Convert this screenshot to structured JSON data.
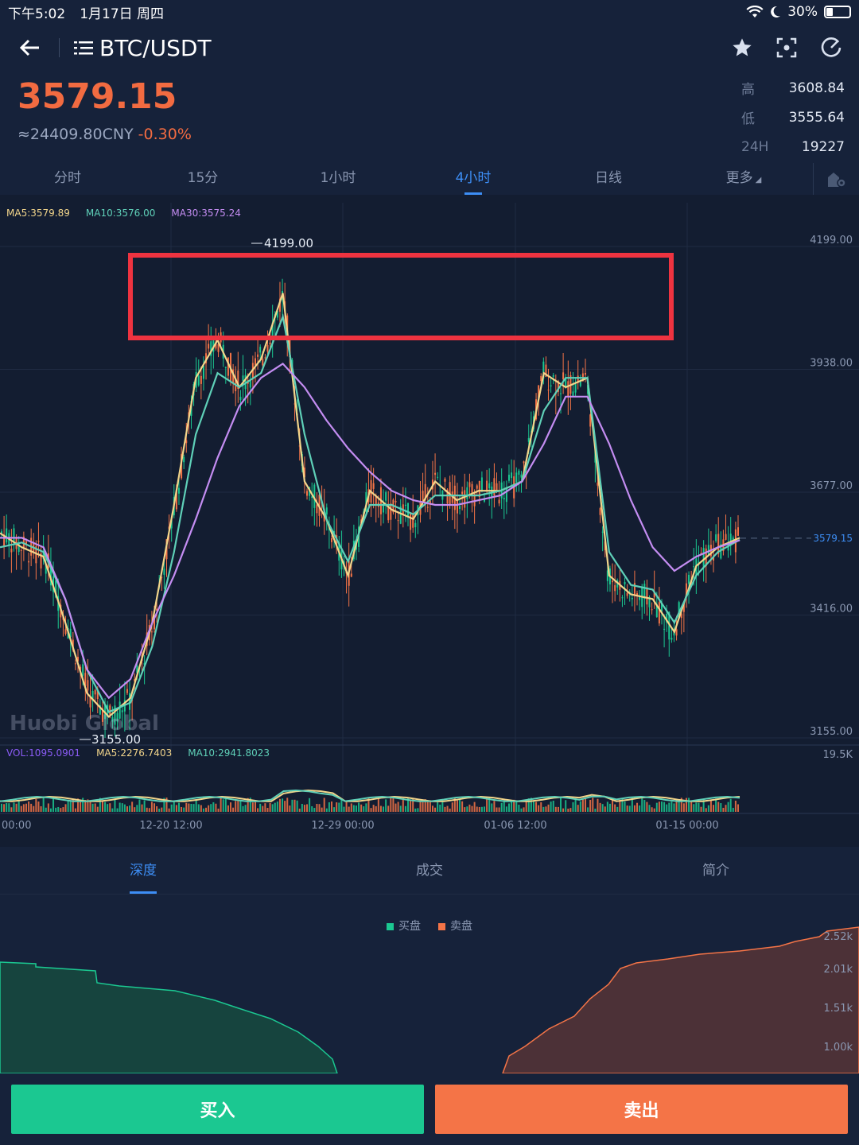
{
  "status_bar": {
    "time": "下午5:02",
    "date": "1月17日 周四",
    "battery": "30%"
  },
  "header": {
    "pair": "BTC/USDT"
  },
  "ticker": {
    "last_price": "3579.15",
    "cny_value": "≈24409.80CNY",
    "change": "-0.30%",
    "high_label": "高",
    "high": "3608.84",
    "low_label": "低",
    "low": "3555.64",
    "vol_label": "24H",
    "vol": "19227"
  },
  "timeframes": [
    "分时",
    "15分",
    "1小时",
    "4小时",
    "日线"
  ],
  "timeframe_active": "4小时",
  "timeframe_more": "更多",
  "ma_legend": {
    "ma5": "MA5:3579.89",
    "ma10": "MA10:3576.00",
    "ma30": "MA30:3575.24"
  },
  "vol_legend": {
    "vol": "VOL:1095.0901",
    "ma5": "MA5:2276.7403",
    "ma10": "MA10:2941.8023"
  },
  "watermark": "Huobi Global",
  "colors": {
    "up": "#1bc891",
    "down": "#f47447",
    "accent": "#3d8ef5",
    "ma5": "#f2d58b",
    "ma10": "#5fd0b8",
    "ma30": "#c48df2"
  },
  "chart_data": {
    "type": "candlestick",
    "y_ticks": [
      "4199.00",
      "3938.00",
      "3677.00",
      "3416.00",
      "3155.00"
    ],
    "ylim": [
      3155,
      4199
    ],
    "x_ticks": [
      "00:00",
      "12-20 12:00",
      "12-29 00:00",
      "01-06 12:00",
      "01-15 00:00"
    ],
    "high_label": "4199.00",
    "low_label": "3155.00",
    "current_price_label": "3579.15",
    "vol_max_label": "19.5K",
    "series": [
      {
        "name": "MA5",
        "values": [
          3590,
          3560,
          3540,
          3400,
          3250,
          3200,
          3240,
          3400,
          3650,
          3920,
          4000,
          3900,
          3960,
          4100,
          3700,
          3620,
          3500,
          3680,
          3640,
          3620,
          3700,
          3660,
          3680,
          3680,
          3700,
          3930,
          3900,
          3920,
          3500,
          3460,
          3450,
          3380,
          3520,
          3560,
          3580
        ]
      },
      {
        "name": "MA10",
        "values": [
          3560,
          3570,
          3550,
          3450,
          3300,
          3210,
          3230,
          3350,
          3550,
          3800,
          3930,
          3900,
          3930,
          4050,
          3800,
          3620,
          3530,
          3650,
          3650,
          3630,
          3670,
          3670,
          3670,
          3680,
          3700,
          3850,
          3920,
          3920,
          3550,
          3480,
          3470,
          3400,
          3500,
          3550,
          3576
        ]
      },
      {
        "name": "MA30",
        "values": [
          3580,
          3580,
          3560,
          3450,
          3300,
          3240,
          3280,
          3400,
          3500,
          3620,
          3750,
          3860,
          3920,
          3950,
          3900,
          3830,
          3770,
          3720,
          3680,
          3660,
          3650,
          3650,
          3660,
          3670,
          3700,
          3780,
          3880,
          3880,
          3780,
          3660,
          3560,
          3510,
          3540,
          3560,
          3575
        ]
      }
    ]
  },
  "lower_tabs": [
    "深度",
    "成交",
    "简介"
  ],
  "lower_tab_active": "深度",
  "depth": {
    "bid_label": "买盘",
    "ask_label": "卖盘",
    "y_ticks": [
      "2.52k",
      "2.01k",
      "1.51k",
      "1.00k"
    ]
  },
  "actions": {
    "buy": "买入",
    "sell": "卖出"
  }
}
